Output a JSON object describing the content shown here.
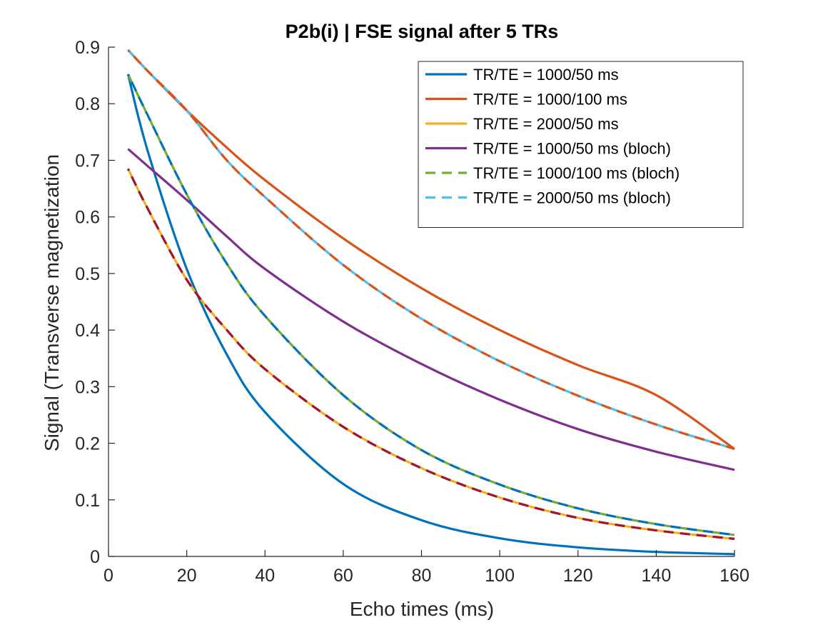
{
  "chart_data": {
    "type": "line",
    "title": "P2b(i) | FSE signal after 5 TRs",
    "xlabel": "Echo times (ms)",
    "ylabel": "Signal (Transverse magnetization",
    "xlim": [
      0,
      160
    ],
    "ylim": [
      0,
      0.9
    ],
    "xticks": [
      0,
      20,
      40,
      60,
      80,
      100,
      120,
      140,
      160
    ],
    "yticks": [
      0,
      0.1,
      0.2,
      0.3,
      0.4,
      0.5,
      0.6,
      0.7,
      0.8,
      0.9
    ],
    "grid": false,
    "legend_position": "top-right",
    "series": [
      {
        "name": "TR/TE = 1000/50 ms",
        "color": "#0072BD",
        "style": "solid",
        "x": [
          5,
          10,
          20,
          30,
          40,
          60,
          80,
          100,
          120,
          140,
          160
        ],
        "y": [
          0.852,
          0.717,
          0.508,
          0.36,
          0.255,
          0.128,
          0.064,
          0.032,
          0.016,
          0.008,
          0.004
        ]
      },
      {
        "name": "TR/TE = 1000/100 ms",
        "color": "#D95319",
        "style": "solid",
        "x": [
          5,
          10,
          20,
          30,
          40,
          60,
          80,
          100,
          120,
          140,
          160
        ],
        "y": [
          0.895,
          0.858,
          0.788,
          0.724,
          0.665,
          0.562,
          0.474,
          0.4,
          0.338,
          0.285,
          0.19
        ]
      },
      {
        "name": "TR/TE = 2000/50 ms",
        "color": "#EDB120",
        "style": "solid",
        "x": [
          5,
          10,
          20,
          30,
          40,
          60,
          80,
          100,
          120,
          140,
          160
        ],
        "y": [
          0.685,
          0.615,
          0.489,
          0.402,
          0.331,
          0.229,
          0.156,
          0.104,
          0.068,
          0.046,
          0.031
        ]
      },
      {
        "name": "TR/TE = 1000/50 ms (bloch)",
        "color": "#7E2F8E",
        "style": "solid",
        "x": [
          5,
          10,
          20,
          30,
          40,
          60,
          80,
          100,
          120,
          140,
          160
        ],
        "y": [
          0.72,
          0.69,
          0.63,
          0.567,
          0.508,
          0.415,
          0.34,
          0.277,
          0.225,
          0.185,
          0.153
        ]
      },
      {
        "name": "TR/TE = 1000/100 ms (bloch)",
        "color": "#77AC30",
        "style": "dashed",
        "x": [
          5,
          10,
          20,
          30,
          40,
          60,
          80,
          100,
          120,
          140,
          160
        ],
        "y": [
          0.852,
          0.78,
          0.64,
          0.52,
          0.425,
          0.285,
          0.188,
          0.127,
          0.085,
          0.057,
          0.038
        ]
      },
      {
        "name": "TR/TE = 2000/50 ms (bloch)",
        "color": "#4DBEEE",
        "style": "dashed",
        "x": [
          5,
          10,
          20,
          30,
          40,
          60,
          80,
          100,
          120,
          140,
          160
        ],
        "y": [
          0.895,
          0.858,
          0.788,
          0.702,
          0.635,
          0.515,
          0.42,
          0.345,
          0.284,
          0.233,
          0.19
        ]
      }
    ],
    "extra_overlay_lines": [
      {
        "color": "#A2142F",
        "style": "dashed",
        "follows_series": 2
      },
      {
        "color": "#0072BD",
        "style": "dashed",
        "follows_series": 4
      },
      {
        "color": "#D95319",
        "style": "dashed",
        "follows_series": 5
      }
    ]
  }
}
